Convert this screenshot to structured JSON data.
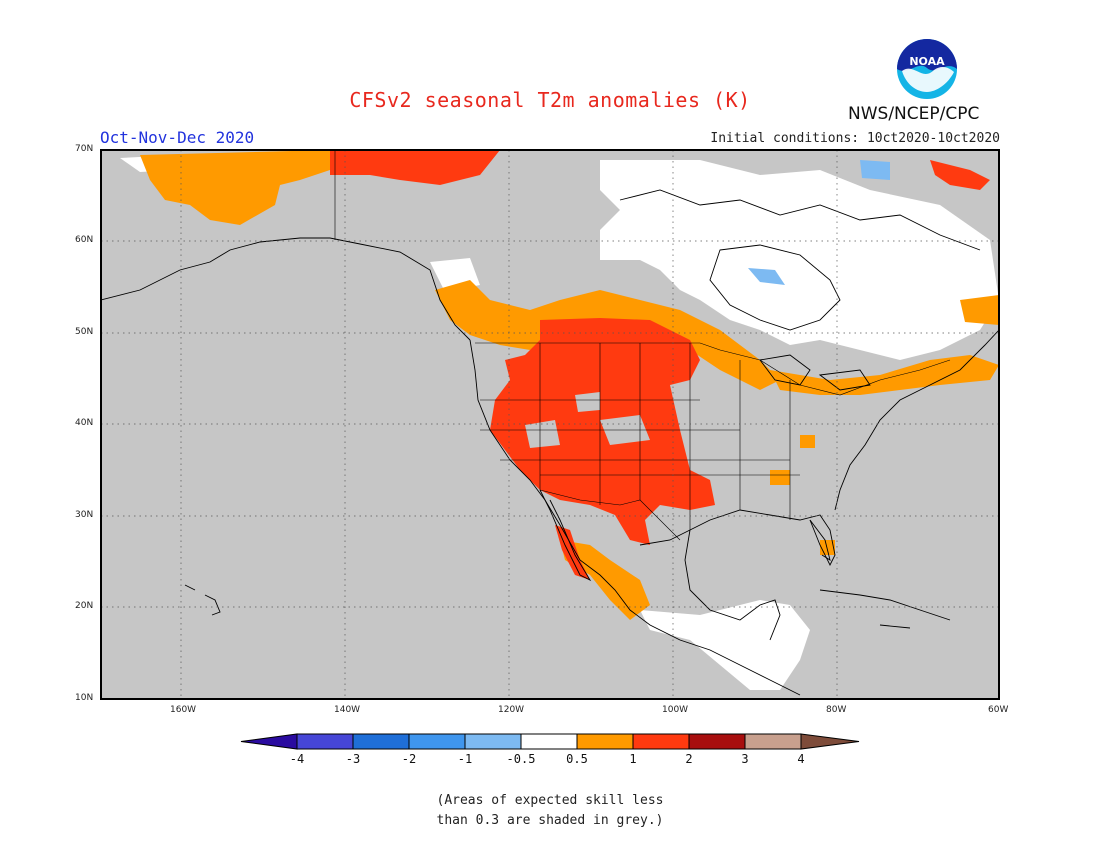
{
  "title": "CFSv2 seasonal T2m anomalies (K)",
  "period": "Oct-Nov-Dec 2020",
  "initial_conditions": "Initial conditions: 10ct2020-10ct2020",
  "organization": "NWS/NCEP/CPC",
  "logo_text": "NOAA",
  "lat_labels": [
    "70N",
    "60N",
    "50N",
    "40N",
    "30N",
    "20N",
    "10N"
  ],
  "lon_labels": [
    "160W",
    "140W",
    "120W",
    "100W",
    "80W",
    "60W"
  ],
  "legend": {
    "labels": [
      "-4",
      "-3",
      "-2",
      "-1",
      "-0.5",
      "0.5",
      "1",
      "2",
      "3",
      "4"
    ],
    "colors": [
      "#2a0ba0",
      "#4646d6",
      "#1f6fd8",
      "#3f96ee",
      "#7dbaf2",
      "#ffffff",
      "#ff9a00",
      "#ff3a10",
      "#a80e0e",
      "#c8a08e",
      "#7e4c3a"
    ]
  },
  "note": [
    "(Areas of expected skill less",
    "than 0.3 are shaded in grey.)"
  ],
  "colors": {
    "land": "#c6c6c6",
    "ocean": "#c6c6c6",
    "title": "#e8281e",
    "period": "#2233dd"
  }
}
